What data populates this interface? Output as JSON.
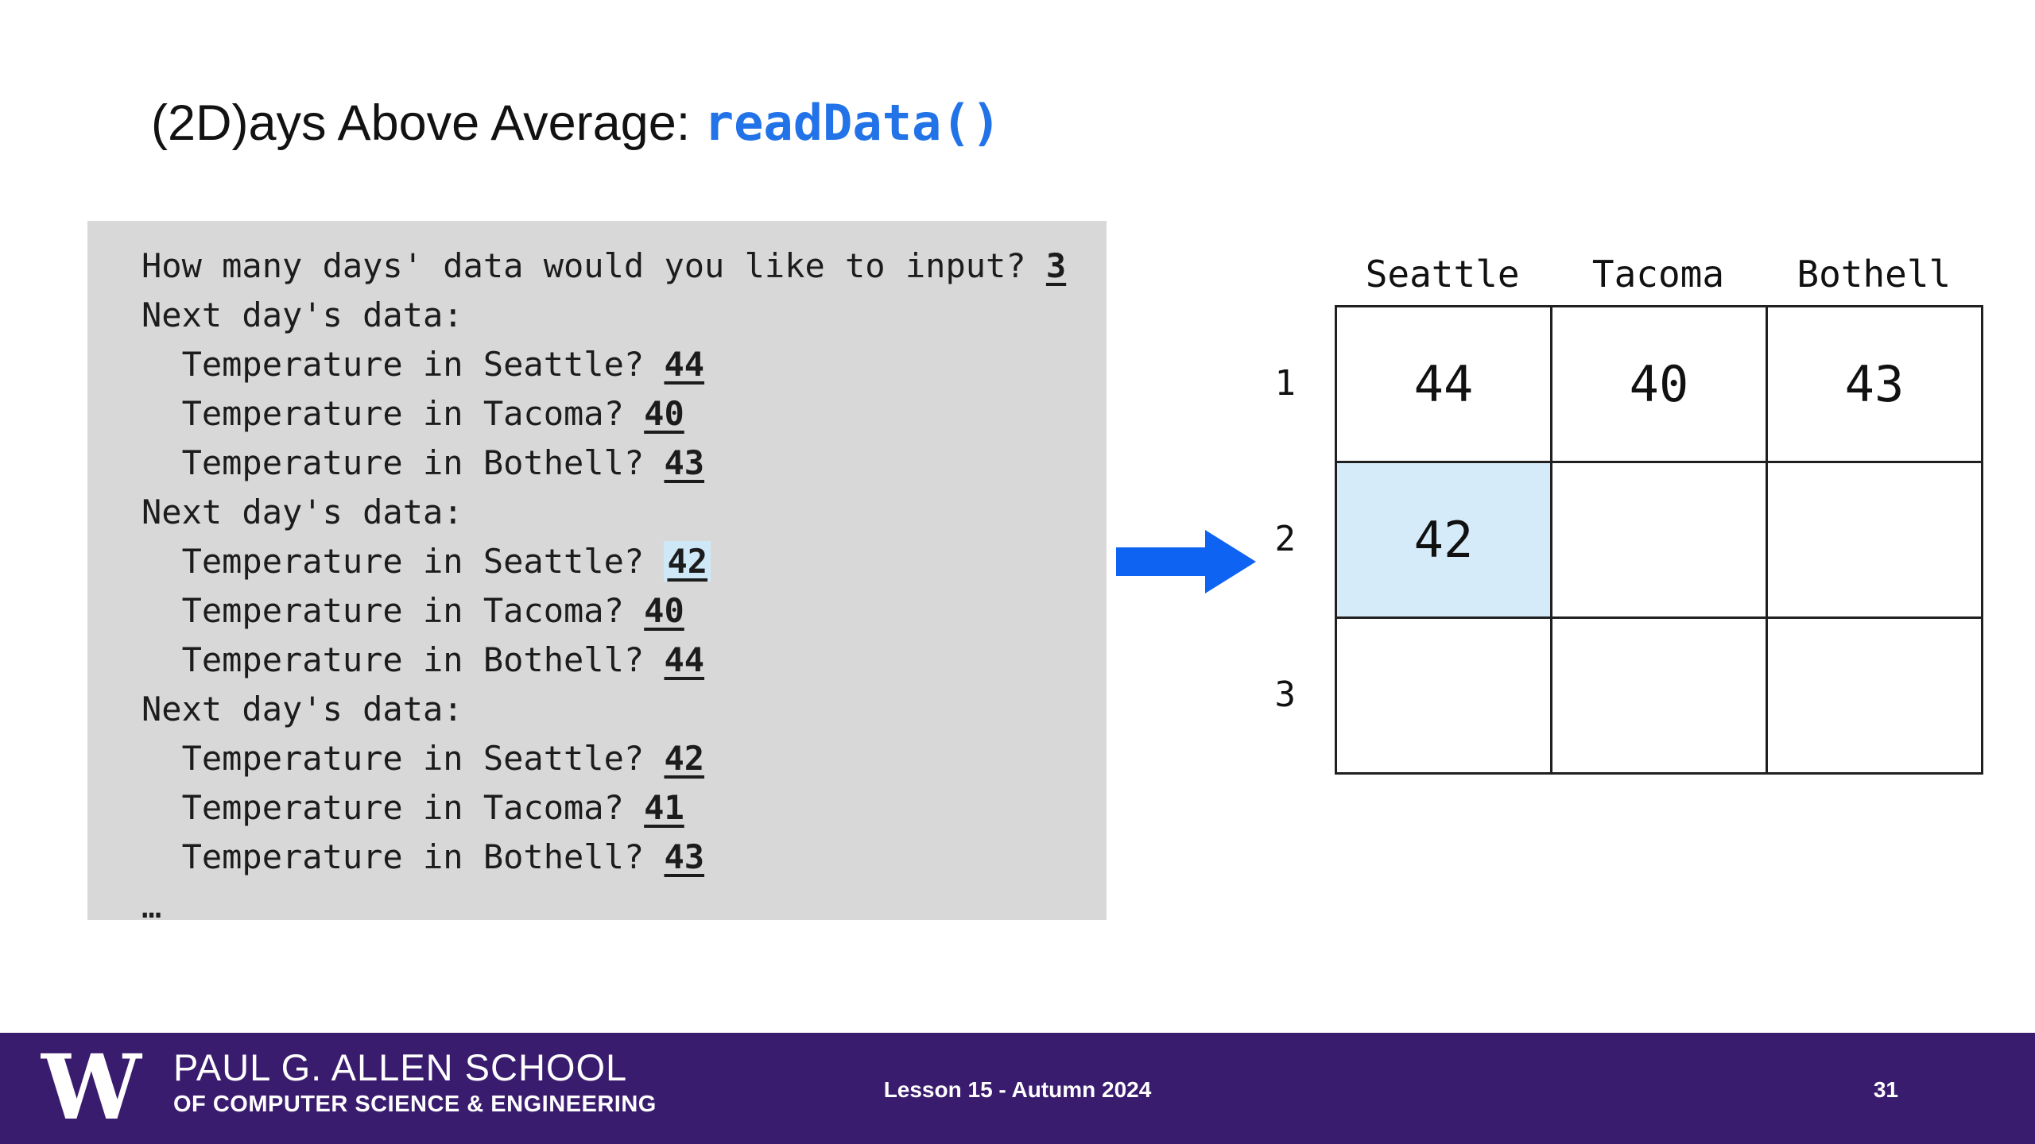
{
  "slide": {
    "title": {
      "plain": "(2D)ays Above Average: ",
      "code": "readData()"
    },
    "page_number": "31",
    "footer": {
      "logo": "W",
      "school_line1": "PAUL G. ALLEN SCHOOL",
      "school_line2": "OF COMPUTER SCIENCE & ENGINEERING",
      "lesson": "Lesson 15 - Autumn 2024"
    },
    "colors": {
      "code_blue": "#2273e8",
      "accent_blue": "#0e63f2",
      "footer_purple": "#3a1c6e",
      "console_bg": "#d8d8d8",
      "highlight_blue": "#cfe8f8",
      "cell_highlight": "#d6ebf9"
    }
  },
  "console": {
    "lines": [
      {
        "prompt": "How many days' data would you like to input? ",
        "value": "3"
      },
      {
        "prompt": "Next day's data:"
      },
      {
        "prompt": "  Temperature in Seattle? ",
        "value": "44"
      },
      {
        "prompt": "  Temperature in Tacoma? ",
        "value": "40"
      },
      {
        "prompt": "  Temperature in Bothell? ",
        "value": "43"
      },
      {
        "prompt": "Next day's data:"
      },
      {
        "prompt": "  Temperature in Seattle? ",
        "value": "42",
        "value_highlighted": true
      },
      {
        "prompt": "  Temperature in Tacoma? ",
        "value": "40"
      },
      {
        "prompt": "  Temperature in Bothell? ",
        "value": "44"
      },
      {
        "prompt": "Next day's data:"
      },
      {
        "prompt": "  Temperature in Seattle? ",
        "value": "42"
      },
      {
        "prompt": "  Temperature in Tacoma? ",
        "value": "41"
      },
      {
        "prompt": "  Temperature in Bothell? ",
        "value": "43"
      },
      {
        "prompt": "…"
      }
    ]
  },
  "grid": {
    "column_headers": [
      "Seattle",
      "Tacoma",
      "Bothell"
    ],
    "row_labels": [
      "1",
      "2",
      "3"
    ],
    "cells": [
      [
        "44",
        "40",
        "43"
      ],
      [
        "42",
        "",
        ""
      ],
      [
        "",
        "",
        ""
      ]
    ],
    "highlighted_cell": {
      "row": 1,
      "col": 0
    }
  }
}
